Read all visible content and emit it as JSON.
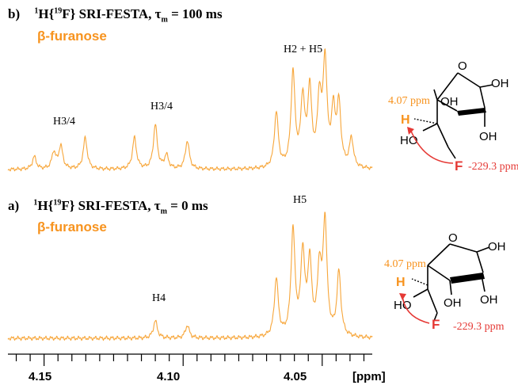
{
  "panels": {
    "b": {
      "letter": "b)",
      "title_pre": "1",
      "title_h": "H{",
      "title_sup": "19",
      "title_f": "F} SRI-FESTA, τ",
      "title_sub": "m",
      "title_post": " = 100 ms",
      "sugar": "β-furanose",
      "peak_labels": [
        "H3/4",
        "H3/4",
        "H2 + H5"
      ],
      "ppm_label": "4.07 ppm",
      "f_ppm_label": "-229.3 ppm"
    },
    "a": {
      "letter": "a)",
      "title_pre": "1",
      "title_h": "H{",
      "title_sup": "19",
      "title_f": "F} SRI-FESTA, τ",
      "title_sub": "m",
      "title_post": " = 0 ms",
      "sugar": "β-furanose",
      "peak_labels": [
        "H4",
        "H5"
      ],
      "ppm_label": "4.07 ppm",
      "f_ppm_label": "-229.3 ppm"
    }
  },
  "structure_atoms": {
    "oh": "OH",
    "ho": "HO",
    "o": "O",
    "h": "H",
    "f": "F"
  },
  "axis": {
    "ticks": [
      "4.15",
      "4.10",
      "4.05"
    ],
    "unit": "[ppm]"
  },
  "colors": {
    "spectrum": "#f7a63a",
    "accent": "#f7931e",
    "arrow": "#e53935",
    "fluorine": "#e53935"
  },
  "chart_data": [
    {
      "type": "line",
      "name": "panel-b",
      "xlabel": "[ppm]",
      "xlim": [
        4.163,
        4.032
      ],
      "reversed_x": true,
      "peaks": [
        {
          "ppm": 4.1535,
          "height": 0.12
        },
        {
          "ppm": 4.1465,
          "height": 0.16
        },
        {
          "ppm": 4.144,
          "height": 0.22
        },
        {
          "ppm": 4.1352,
          "height": 0.3
        },
        {
          "ppm": 4.1175,
          "height": 0.3
        },
        {
          "ppm": 4.11,
          "height": 0.42
        },
        {
          "ppm": 4.106,
          "height": 0.13
        },
        {
          "ppm": 4.0985,
          "height": 0.27
        },
        {
          "ppm": 4.0665,
          "height": 0.53
        },
        {
          "ppm": 4.0605,
          "height": 0.9
        },
        {
          "ppm": 4.057,
          "height": 0.63
        },
        {
          "ppm": 4.0545,
          "height": 0.72
        },
        {
          "ppm": 4.051,
          "height": 0.62
        },
        {
          "ppm": 4.049,
          "height": 0.98
        },
        {
          "ppm": 4.046,
          "height": 0.5
        },
        {
          "ppm": 4.044,
          "height": 0.58
        },
        {
          "ppm": 4.0395,
          "height": 0.28
        }
      ]
    },
    {
      "type": "line",
      "name": "panel-a",
      "xlabel": "[ppm]",
      "xlim": [
        4.163,
        4.032
      ],
      "reversed_x": true,
      "peaks": [
        {
          "ppm": 4.11,
          "height": 0.15
        },
        {
          "ppm": 4.0985,
          "height": 0.11
        },
        {
          "ppm": 4.0665,
          "height": 0.5
        },
        {
          "ppm": 4.0605,
          "height": 0.91
        },
        {
          "ppm": 4.057,
          "height": 0.7
        },
        {
          "ppm": 4.0545,
          "height": 0.62
        },
        {
          "ppm": 4.051,
          "height": 0.55
        },
        {
          "ppm": 4.049,
          "height": 0.97
        },
        {
          "ppm": 4.044,
          "height": 0.55
        }
      ]
    }
  ]
}
